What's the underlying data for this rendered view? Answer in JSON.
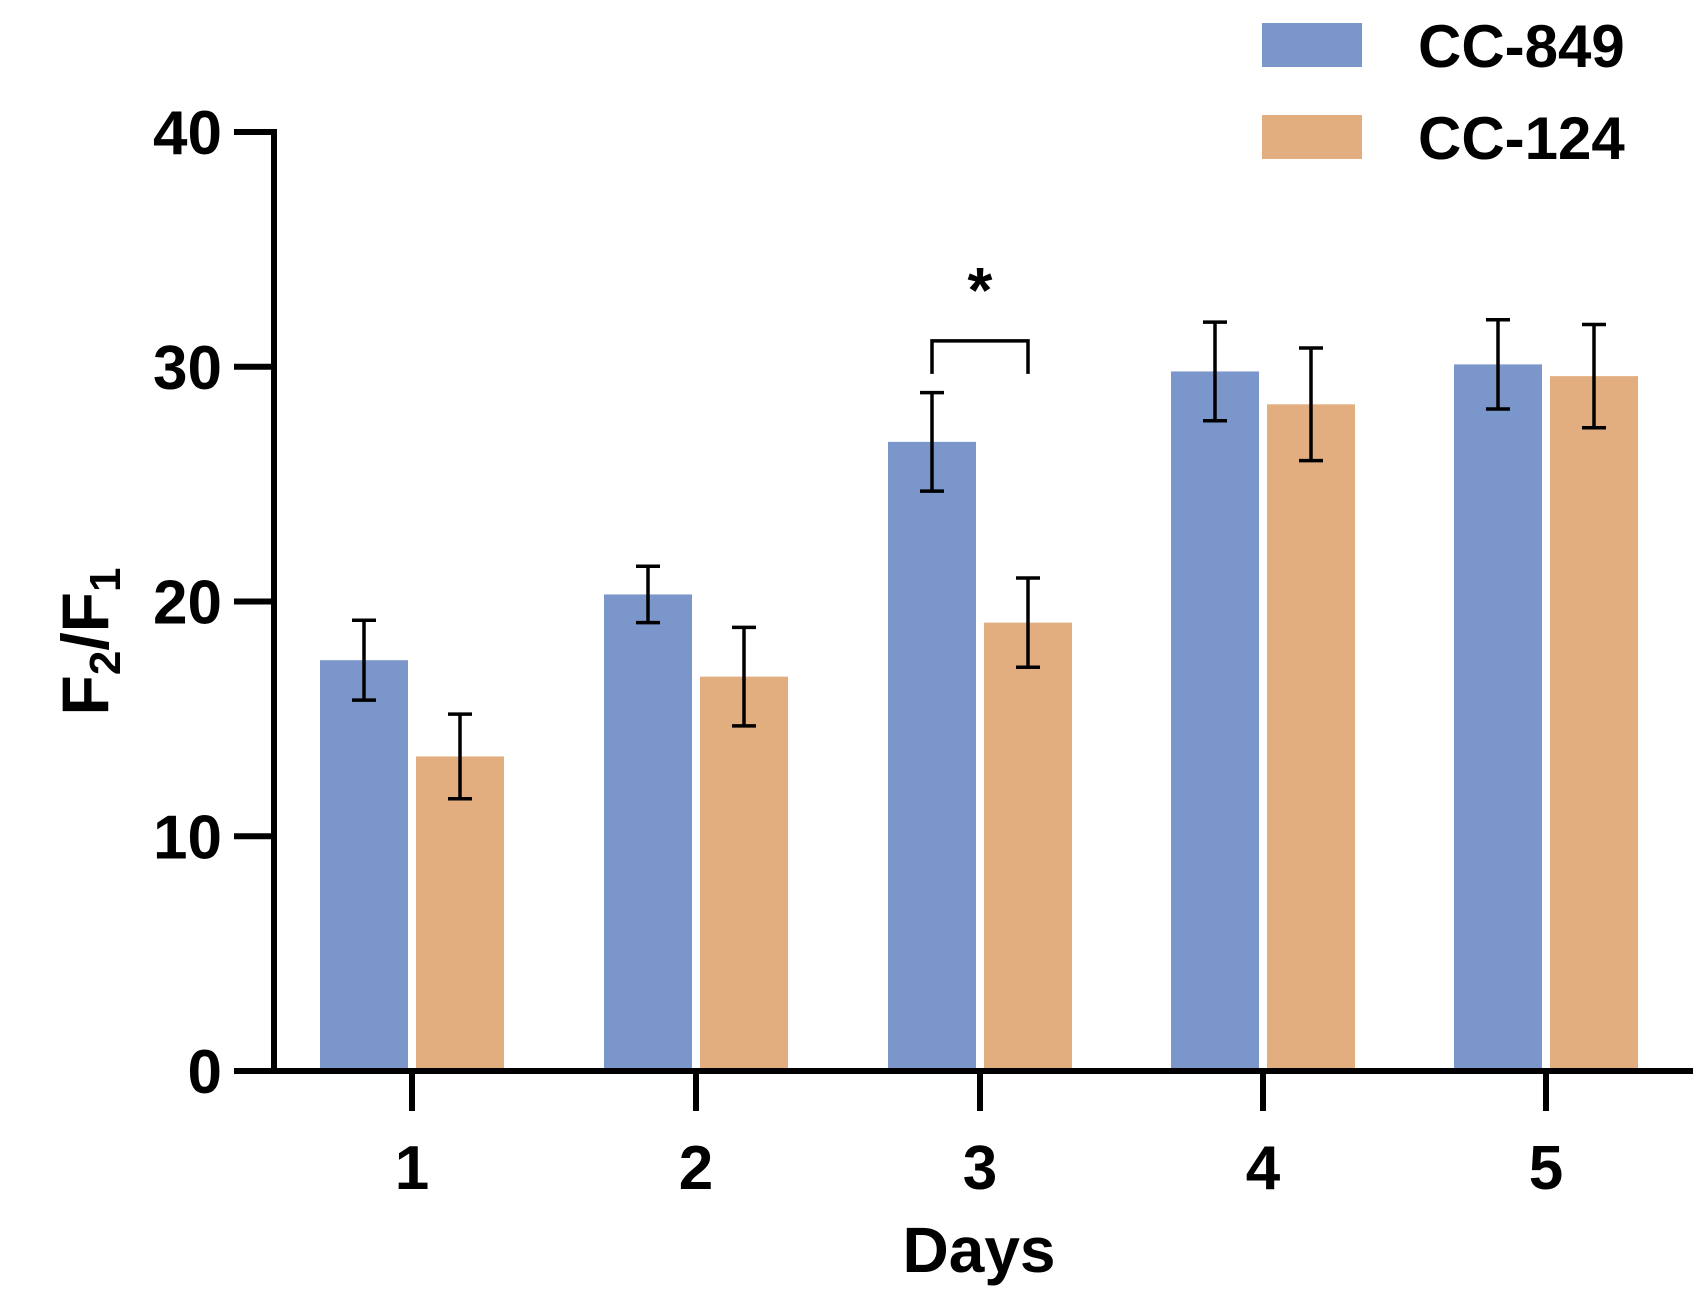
{
  "chart_data": {
    "type": "bar",
    "title": "",
    "xlabel": "Days",
    "ylabel": {
      "base": "F",
      "num_sub": "2",
      "sep": "/F",
      "den_sub": "1"
    },
    "categories": [
      "1",
      "2",
      "3",
      "4",
      "5"
    ],
    "ylim": [
      0,
      40
    ],
    "yticks": [
      "0",
      "10",
      "20",
      "30",
      "40"
    ],
    "series": [
      {
        "name": "CC-849",
        "color": "#7b96cb",
        "values": [
          17.5,
          20.3,
          26.8,
          29.8,
          30.1
        ],
        "errors": [
          1.7,
          1.2,
          2.1,
          2.1,
          1.9
        ]
      },
      {
        "name": "CC-124",
        "color": "#e2ae7f",
        "values": [
          13.4,
          16.8,
          19.1,
          28.4,
          29.6
        ],
        "errors": [
          1.8,
          2.1,
          1.9,
          2.4,
          2.2
        ]
      }
    ],
    "annotations": [
      {
        "category": "3",
        "text": "*",
        "bracket_y": 31.1,
        "label_y": 33.6
      }
    ],
    "legend_position": "top-right"
  }
}
